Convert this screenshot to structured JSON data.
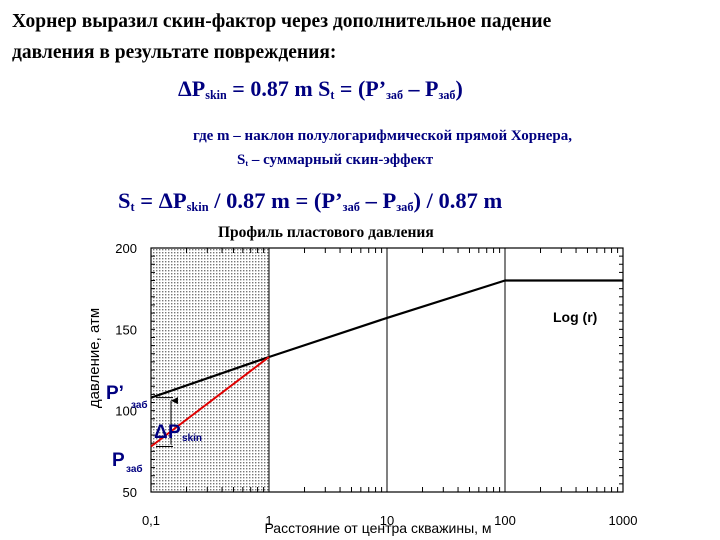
{
  "intro": {
    "line1": "Хорнер выразил скин-фактор через дополнительное падение",
    "line2": "давления в результате повреждения:"
  },
  "formula1": {
    "delta": "Δ",
    "p": "P",
    "p_sub": "skin",
    "mid": " = 0.87 m S",
    "s_sub": "t",
    "rhs": " = (P’",
    "zab1": "заб",
    "minus": " – P",
    "zab2": "заб",
    "close": ")"
  },
  "definitions": {
    "row1": "где   m – наклон полулогарифмической прямой Хорнера,",
    "row2_s": "S",
    "row2_sub": "t",
    "row2_rest": " – суммарный скин-эффект"
  },
  "formula2": {
    "s": "S",
    "s_sub": "t",
    "eq": " = ",
    "delta": "Δ",
    "p": "P",
    "p_sub": "skin",
    "mid": " / 0.87 m = (P’",
    "zab1": "заб",
    "minus": " – P",
    "zab2": "заб",
    "close": ") / 0.87 m"
  },
  "chart_data": {
    "type": "line",
    "title": "Профиль пластового давления",
    "xlabel": "Расстояние от центра скважины, м",
    "ylabel": "давление, атм",
    "x_scale": "log",
    "xlim": [
      0.1,
      1000
    ],
    "ylim": [
      50,
      200
    ],
    "x_ticks": [
      "0,1",
      "1",
      "10",
      "100",
      "1000"
    ],
    "y_ticks": [
      "200",
      "150",
      "100",
      "50"
    ],
    "annotation": "Log (r)",
    "shaded_zone": [
      0.1,
      1
    ],
    "series": [
      {
        "color": "#000000",
        "points": [
          [
            0.1,
            108
          ],
          [
            1,
            133
          ],
          [
            10,
            157
          ],
          [
            100,
            180
          ],
          [
            1000,
            180
          ]
        ]
      },
      {
        "color": "#e00000",
        "points": [
          [
            0.1,
            78
          ],
          [
            1,
            133
          ]
        ]
      }
    ],
    "labels": {
      "p_prime": "P’",
      "p_prime_sub": "заб",
      "p": "P",
      "p_sub": "заб",
      "dp_delta": "Δ",
      "dp_p": "P",
      "dp_sub": "skin"
    },
    "label_color": "#000080"
  }
}
